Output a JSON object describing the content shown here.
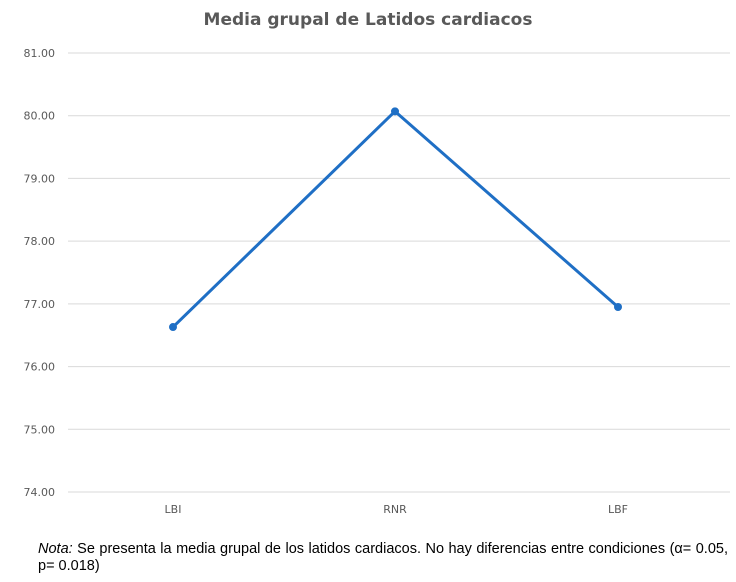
{
  "chart_data": {
    "type": "line",
    "title": "Media grupal de Latidos cardiacos",
    "categories": [
      "LBI",
      "RNR",
      "LBF"
    ],
    "series": [
      {
        "name": "Latidos cardiacos",
        "values": [
          76.63,
          80.07,
          76.95
        ],
        "color": "#1F6FC5"
      }
    ],
    "ylim": [
      74,
      81
    ],
    "yticks": [
      "74.00",
      "75.00",
      "76.00",
      "77.00",
      "78.00",
      "79.00",
      "80.00",
      "81.00"
    ],
    "xlabel": "",
    "ylabel": "",
    "grid": true
  },
  "note": {
    "label": "Nota:",
    "text": " Se presenta la media grupal de los latidos cardiacos. No hay diferencias entre condiciones (α= 0.05, p= 0.018)"
  }
}
